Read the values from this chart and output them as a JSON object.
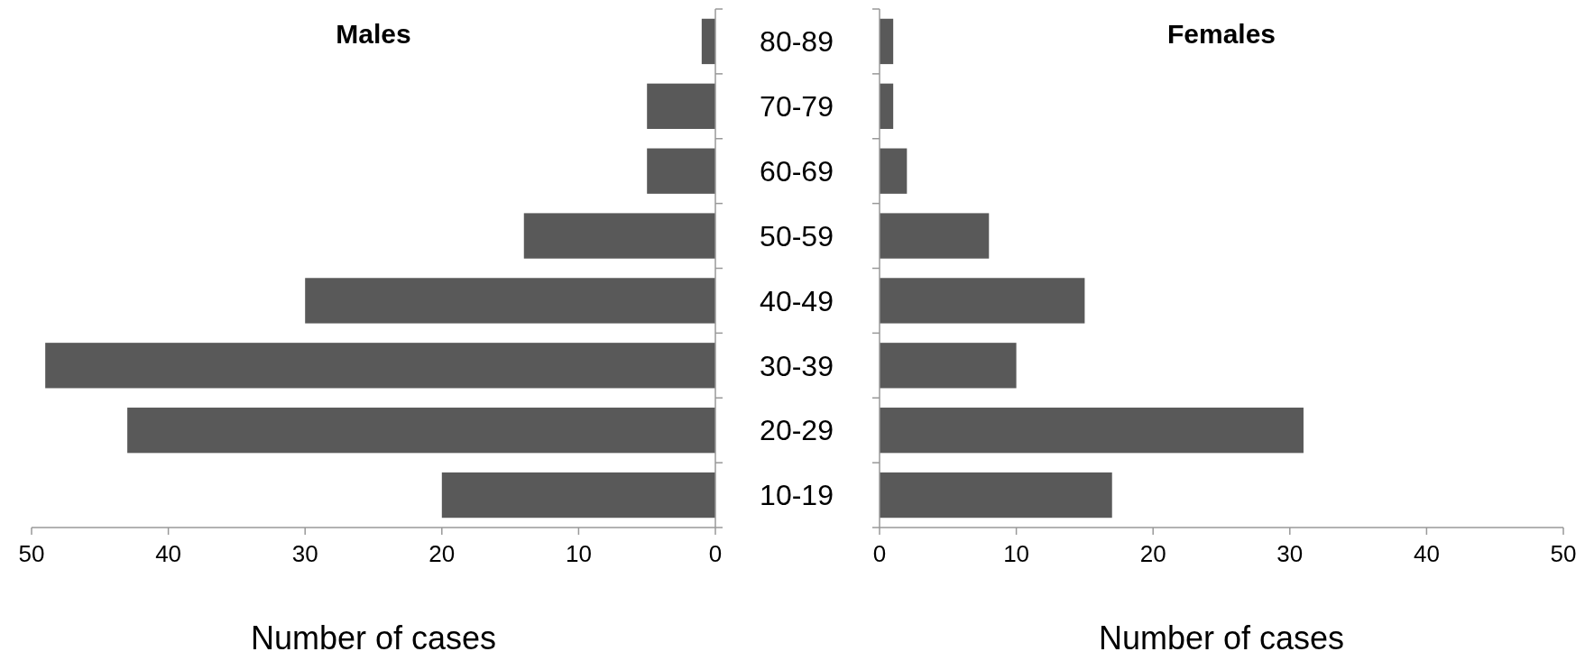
{
  "chart_data": [
    {
      "type": "bar",
      "orientation": "horizontal",
      "title": "Males",
      "xlabel": "Number of cases",
      "categories": [
        "80-89",
        "70-79",
        "60-69",
        "50-59",
        "40-49",
        "30-39",
        "20-29",
        "10-19"
      ],
      "values": [
        1,
        5,
        5,
        14,
        30,
        49,
        43,
        20
      ],
      "color": "#595959",
      "xlim": [
        50,
        0
      ],
      "xticks": [
        50,
        40,
        30,
        20,
        10,
        0
      ]
    },
    {
      "type": "bar",
      "orientation": "horizontal",
      "title": "Females",
      "xlabel": "Number of cases",
      "categories": [
        null,
        null,
        null,
        null,
        null,
        null,
        null,
        null
      ],
      "values": [
        1,
        1,
        2,
        8,
        15,
        10,
        31,
        17
      ],
      "color": "#595959",
      "xlim": [
        0,
        50
      ],
      "xticks": [
        0,
        10,
        20,
        30,
        40,
        50
      ]
    }
  ]
}
